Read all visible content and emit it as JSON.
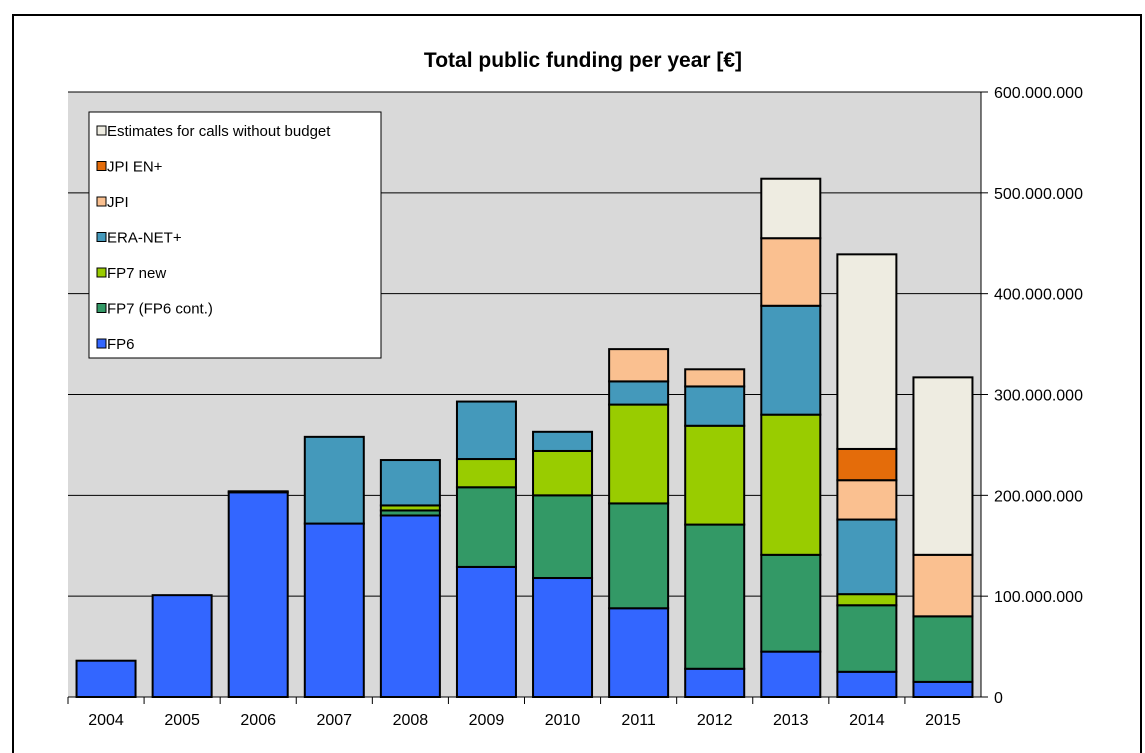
{
  "chart_data": {
    "type": "bar",
    "stacked": true,
    "title": "Total public funding per year [€]",
    "xlabel": "",
    "ylabel": "",
    "ylim": [
      0,
      600000000
    ],
    "y_ticks": [
      "0",
      "100.000.000",
      "200.000.000",
      "300.000.000",
      "400.000.000",
      "500.000.000",
      "600.000.000"
    ],
    "y_axis_position": "right",
    "grid": true,
    "legend_position": "top-left",
    "categories": [
      "2004",
      "2005",
      "2006",
      "2007",
      "2008",
      "2009",
      "2010",
      "2011",
      "2012",
      "2013",
      "2014",
      "2015"
    ],
    "series": [
      {
        "name": "FP6",
        "color": "#3366ff",
        "values": [
          36000000,
          101000000,
          203000000,
          172000000,
          180000000,
          129000000,
          118000000,
          88000000,
          28000000,
          45000000,
          25000000,
          15000000
        ]
      },
      {
        "name": "FP7 (FP6 cont.)",
        "color": "#339966",
        "values": [
          0,
          0,
          0,
          0,
          5000000,
          79000000,
          82000000,
          104000000,
          143000000,
          96000000,
          66000000,
          65000000
        ]
      },
      {
        "name": "FP7 new",
        "color": "#99cc00",
        "values": [
          0,
          0,
          0,
          0,
          5000000,
          28000000,
          44000000,
          98000000,
          98000000,
          139000000,
          11000000,
          0
        ]
      },
      {
        "name": "ERA-NET+",
        "color": "#4499bb",
        "values": [
          0,
          0,
          1000000,
          86000000,
          45000000,
          57000000,
          19000000,
          23000000,
          39000000,
          108000000,
          74000000,
          0
        ]
      },
      {
        "name": "JPI",
        "color": "#fac090",
        "values": [
          0,
          0,
          0,
          0,
          0,
          0,
          0,
          32000000,
          17000000,
          67000000,
          39000000,
          61000000
        ]
      },
      {
        "name": "JPI EN+",
        "color": "#e46c0a",
        "values": [
          0,
          0,
          0,
          0,
          0,
          0,
          0,
          0,
          0,
          0,
          31000000,
          0
        ]
      },
      {
        "name": "Estimates for calls without budget",
        "color": "#eeece1",
        "values": [
          0,
          0,
          0,
          0,
          0,
          0,
          0,
          0,
          0,
          59000000,
          193000000,
          176000000
        ]
      }
    ],
    "legend_order": [
      "Estimates for calls without budget",
      "JPI EN+",
      "JPI",
      "ERA-NET+",
      "FP7 new",
      "FP7 (FP6 cont.)",
      "FP6"
    ],
    "plot_background": "#d9d9d9"
  }
}
